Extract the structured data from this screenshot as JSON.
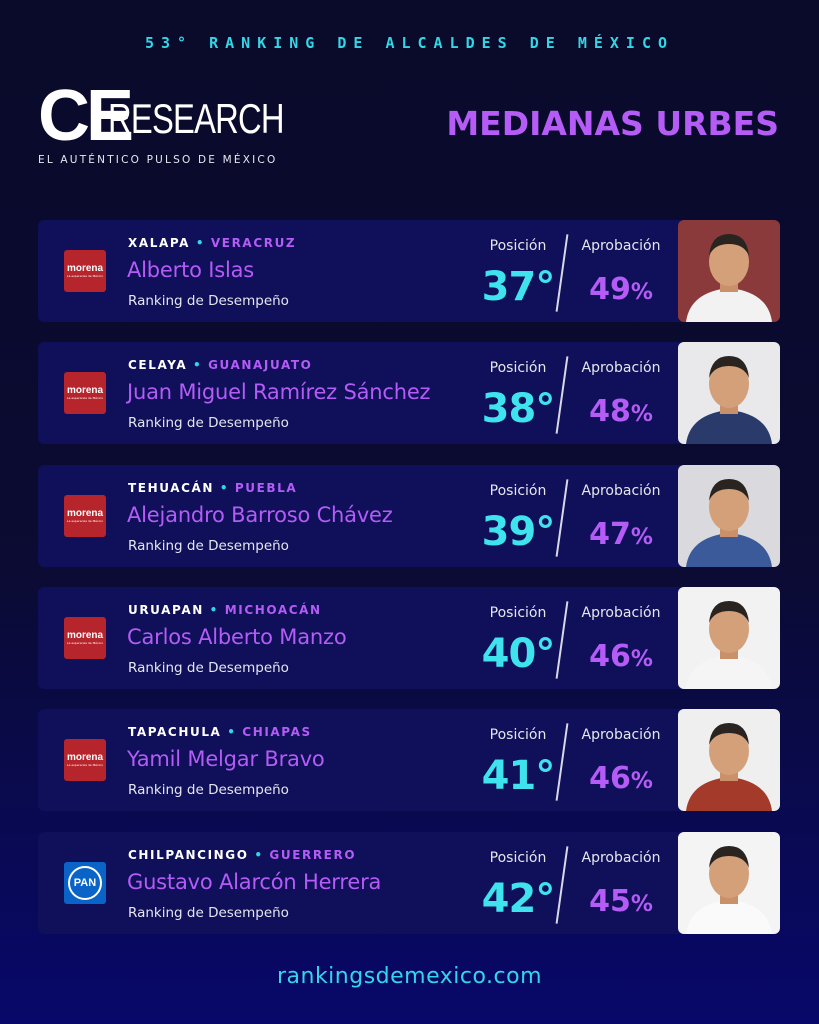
{
  "header": {
    "title": "53° RANKING DE ALCALDES DE MÉXICO",
    "logo_ce": "CE",
    "logo_research": "RESEARCH",
    "logo_tagline": "EL AUTÉNTICO PULSO DE MÉXICO",
    "section_title": "MEDIANAS URBES"
  },
  "labels": {
    "position": "Posición",
    "approval": "Aprobación",
    "ranking": "Ranking de Desempeño",
    "separator": "•",
    "percent": "%",
    "morena": "morena",
    "morena_sub": "La esperanza de México",
    "pan": "PAN"
  },
  "entries": [
    {
      "city": "XALAPA",
      "state": "VERACRUZ",
      "name": "Alberto Islas",
      "position": "37°",
      "approval": "49",
      "party": "morena",
      "photo_bg": "#8a3a3a",
      "shirt": "#f2f2f2"
    },
    {
      "city": "CELAYA",
      "state": "GUANAJUATO",
      "name": "Juan Miguel Ramírez Sánchez",
      "position": "38°",
      "approval": "48",
      "party": "morena",
      "photo_bg": "#e9e9ec",
      "shirt": "#2a3a6a"
    },
    {
      "city": "TEHUACÁN",
      "state": "PUEBLA",
      "name": "Alejandro Barroso Chávez",
      "position": "39°",
      "approval": "47",
      "party": "morena",
      "photo_bg": "#d9d9de",
      "shirt": "#3a5a9a"
    },
    {
      "city": "URUAPAN",
      "state": "MICHOACÁN",
      "name": "Carlos Alberto Manzo",
      "position": "40°",
      "approval": "46",
      "party": "morena",
      "photo_bg": "#f2f2f2",
      "shirt": "#f5f5f5"
    },
    {
      "city": "TAPACHULA",
      "state": "CHIAPAS",
      "name": "Yamil Melgar Bravo",
      "position": "41°",
      "approval": "46",
      "party": "morena",
      "photo_bg": "#efefef",
      "shirt": "#a33a2a"
    },
    {
      "city": "CHILPANCINGO",
      "state": "GUERRERO",
      "name": "Gustavo Alarcón Herrera",
      "position": "42°",
      "approval": "45",
      "party": "pan",
      "photo_bg": "#f4f4f4",
      "shirt": "#fafafa"
    }
  ],
  "footer": {
    "url": "rankingsdemexico.com"
  },
  "colors": {
    "accent_cyan": "#33d6e6",
    "accent_purple": "#b45cf5",
    "card_bg": "#0f0f5a",
    "morena_red": "#b6242c",
    "pan_blue": "#0a64c8"
  }
}
